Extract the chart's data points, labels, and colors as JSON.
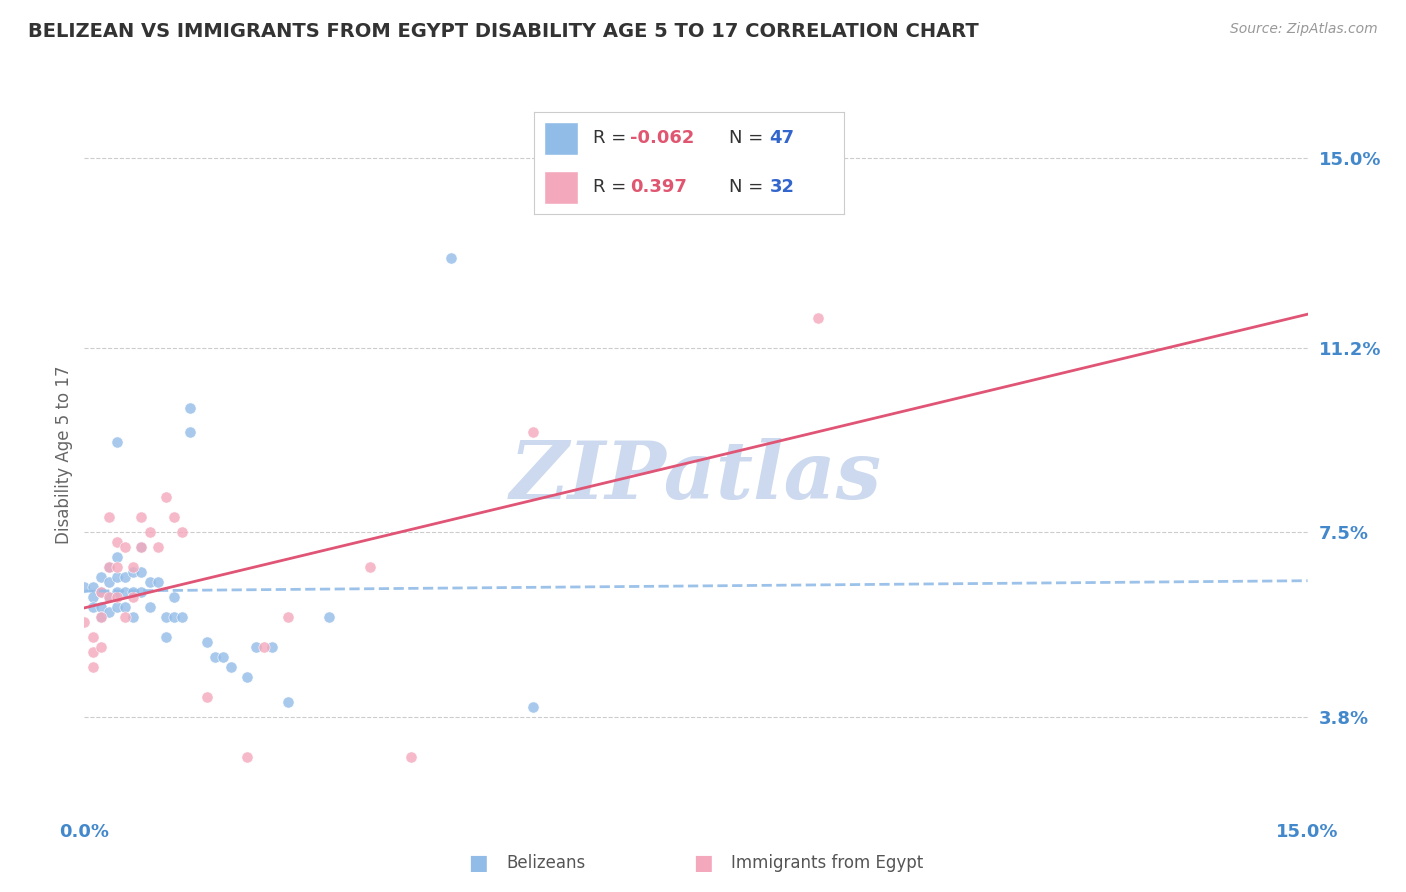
{
  "title": "BELIZEAN VS IMMIGRANTS FROM EGYPT DISABILITY AGE 5 TO 17 CORRELATION CHART",
  "source": "Source: ZipAtlas.com",
  "ylabel": "Disability Age 5 to 17",
  "xmin": 0.0,
  "xmax": 0.15,
  "ymin": 0.019,
  "ymax": 0.162,
  "yticks": [
    0.038,
    0.075,
    0.112,
    0.15
  ],
  "ytick_labels": [
    "3.8%",
    "7.5%",
    "11.2%",
    "15.0%"
  ],
  "xtick_labels": [
    "0.0%",
    "15.0%"
  ],
  "series1_label": "Belizeans",
  "series1_R": -0.062,
  "series1_N": 47,
  "series1_color": "#92bce8",
  "series2_label": "Immigrants from Egypt",
  "series2_R": 0.397,
  "series2_N": 32,
  "series2_color": "#f4a8bc",
  "series1_scatter": [
    [
      0.0,
      0.064
    ],
    [
      0.001,
      0.064
    ],
    [
      0.001,
      0.062
    ],
    [
      0.001,
      0.06
    ],
    [
      0.002,
      0.066
    ],
    [
      0.002,
      0.063
    ],
    [
      0.002,
      0.06
    ],
    [
      0.002,
      0.058
    ],
    [
      0.003,
      0.068
    ],
    [
      0.003,
      0.065
    ],
    [
      0.003,
      0.062
    ],
    [
      0.003,
      0.059
    ],
    [
      0.004,
      0.07
    ],
    [
      0.004,
      0.066
    ],
    [
      0.004,
      0.063
    ],
    [
      0.004,
      0.06
    ],
    [
      0.005,
      0.066
    ],
    [
      0.005,
      0.063
    ],
    [
      0.005,
      0.06
    ],
    [
      0.006,
      0.067
    ],
    [
      0.006,
      0.063
    ],
    [
      0.006,
      0.058
    ],
    [
      0.007,
      0.072
    ],
    [
      0.007,
      0.067
    ],
    [
      0.007,
      0.063
    ],
    [
      0.008,
      0.065
    ],
    [
      0.008,
      0.06
    ],
    [
      0.009,
      0.065
    ],
    [
      0.01,
      0.058
    ],
    [
      0.01,
      0.054
    ],
    [
      0.011,
      0.062
    ],
    [
      0.011,
      0.058
    ],
    [
      0.012,
      0.058
    ],
    [
      0.013,
      0.1
    ],
    [
      0.013,
      0.095
    ],
    [
      0.015,
      0.053
    ],
    [
      0.016,
      0.05
    ],
    [
      0.017,
      0.05
    ],
    [
      0.018,
      0.048
    ],
    [
      0.02,
      0.046
    ],
    [
      0.021,
      0.052
    ],
    [
      0.023,
      0.052
    ],
    [
      0.025,
      0.041
    ],
    [
      0.03,
      0.058
    ],
    [
      0.045,
      0.13
    ],
    [
      0.055,
      0.04
    ],
    [
      0.004,
      0.093
    ]
  ],
  "series2_scatter": [
    [
      0.0,
      0.057
    ],
    [
      0.001,
      0.054
    ],
    [
      0.001,
      0.051
    ],
    [
      0.001,
      0.048
    ],
    [
      0.002,
      0.063
    ],
    [
      0.002,
      0.058
    ],
    [
      0.002,
      0.052
    ],
    [
      0.003,
      0.078
    ],
    [
      0.003,
      0.068
    ],
    [
      0.003,
      0.062
    ],
    [
      0.004,
      0.073
    ],
    [
      0.004,
      0.068
    ],
    [
      0.004,
      0.062
    ],
    [
      0.005,
      0.072
    ],
    [
      0.005,
      0.058
    ],
    [
      0.006,
      0.068
    ],
    [
      0.006,
      0.062
    ],
    [
      0.007,
      0.078
    ],
    [
      0.007,
      0.072
    ],
    [
      0.008,
      0.075
    ],
    [
      0.009,
      0.072
    ],
    [
      0.01,
      0.082
    ],
    [
      0.011,
      0.078
    ],
    [
      0.012,
      0.075
    ],
    [
      0.015,
      0.042
    ],
    [
      0.02,
      0.03
    ],
    [
      0.022,
      0.052
    ],
    [
      0.025,
      0.058
    ],
    [
      0.035,
      0.068
    ],
    [
      0.04,
      0.03
    ],
    [
      0.055,
      0.095
    ],
    [
      0.09,
      0.118
    ]
  ],
  "watermark_text": "ZIPatlas",
  "watermark_color": "#ccd9ee",
  "grid_color": "#cccccc",
  "background_color": "#ffffff",
  "title_color": "#333333",
  "axis_label_color": "#666666",
  "tick_label_color": "#4488cc",
  "legend_R_color": "#e05570",
  "legend_N_color": "#3366cc"
}
